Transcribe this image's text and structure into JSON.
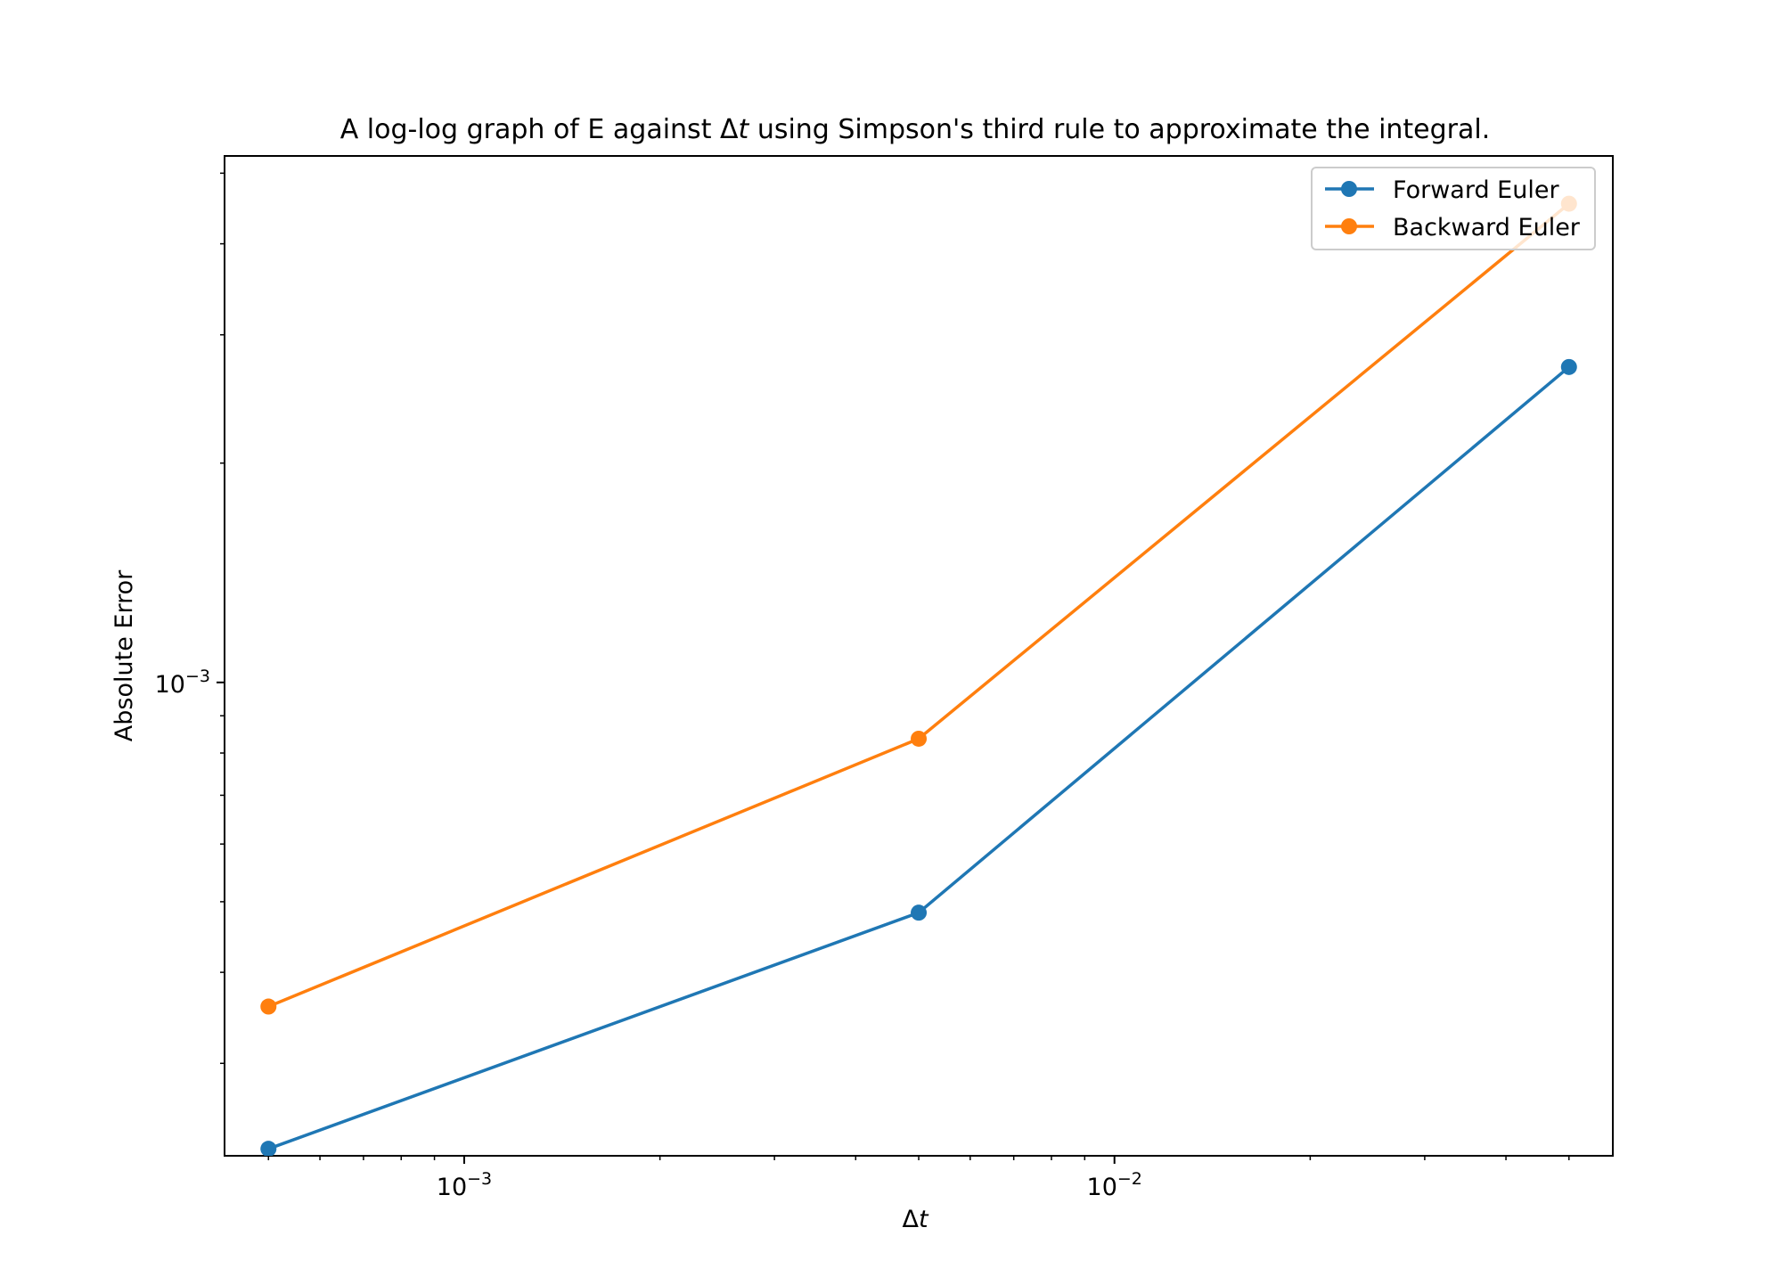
{
  "chart_data": {
    "type": "line",
    "title_main": "A log-log graph of E against Δ",
    "title_var": "t",
    "title_rest": " using Simpson's third rule to approximate the integral.",
    "xlabel_main": "Δ",
    "xlabel_var": "t",
    "ylabel": "Absolute Error",
    "xscale": "log",
    "yscale": "log",
    "xlim": [
      0.000428,
      0.0584
    ],
    "ylim": [
      0.000224,
      0.00528
    ],
    "x": [
      0.0005,
      0.005,
      0.05
    ],
    "x_ticks": [
      {
        "value": 0.001,
        "base": "10",
        "exp": "−3"
      },
      {
        "value": 0.01,
        "base": "10",
        "exp": "−2"
      }
    ],
    "y_ticks": [
      {
        "value": 0.001,
        "base": "10",
        "exp": "−3"
      }
    ],
    "series": [
      {
        "name": "Forward Euler",
        "color": "#1f77b4",
        "values": [
          0.000229,
          0.000483,
          0.00271
        ]
      },
      {
        "name": "Backward Euler",
        "color": "#ff7f0e",
        "values": [
          0.000359,
          0.000837,
          0.00454
        ]
      }
    ],
    "legend_position": "top-right",
    "grid": false
  }
}
